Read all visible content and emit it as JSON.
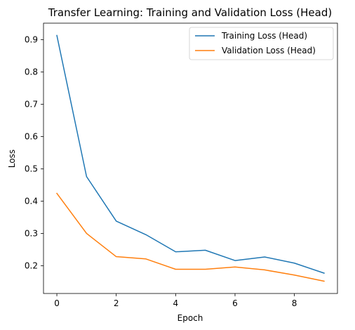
{
  "chart_data": {
    "type": "line",
    "title": "Transfer Learning: Training and Validation Loss (Head)",
    "xlabel": "Epoch",
    "ylabel": "Loss",
    "x": [
      0,
      1,
      2,
      3,
      4,
      5,
      6,
      7,
      8,
      9
    ],
    "xlim": [
      -0.45,
      9.45
    ],
    "ylim": [
      0.114,
      0.951
    ],
    "xticks": [
      0,
      2,
      4,
      6,
      8
    ],
    "yticks": [
      0.2,
      0.3,
      0.4,
      0.5,
      0.6,
      0.7,
      0.8,
      0.9
    ],
    "xtick_labels": [
      "0",
      "2",
      "4",
      "6",
      "8"
    ],
    "ytick_labels": [
      "0.2",
      "0.3",
      "0.4",
      "0.5",
      "0.6",
      "0.7",
      "0.8",
      "0.9"
    ],
    "grid": false,
    "legend_position": "top-right",
    "series": [
      {
        "name": "Training Loss (Head)",
        "color": "#1f77b4",
        "values": [
          0.913,
          0.476,
          0.338,
          0.296,
          0.243,
          0.248,
          0.216,
          0.227,
          0.208,
          0.177
        ]
      },
      {
        "name": "Validation Loss (Head)",
        "color": "#ff7f0e",
        "values": [
          0.424,
          0.3,
          0.228,
          0.221,
          0.189,
          0.189,
          0.196,
          0.187,
          0.171,
          0.152
        ]
      }
    ]
  }
}
